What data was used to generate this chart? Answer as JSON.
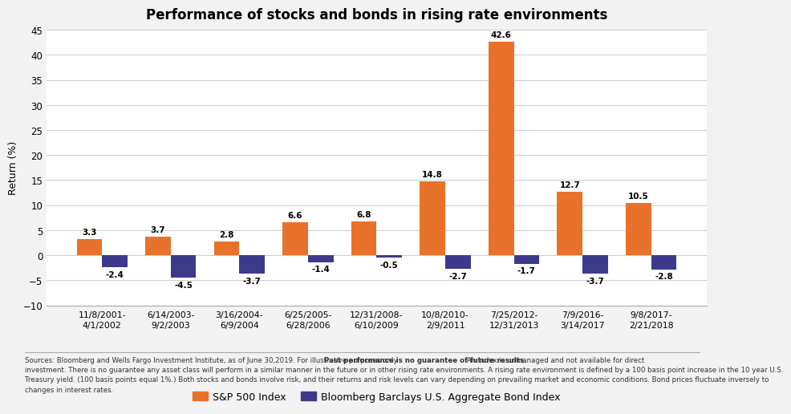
{
  "title": "Performance of stocks and bonds in rising rate environments",
  "categories": [
    "11/8/2001-\n4/1/2002",
    "6/14/2003-\n9/2/2003",
    "3/16/2004-\n6/9/2004",
    "6/25/2005-\n6/28/2006",
    "12/31/2008-\n6/10/2009",
    "10/8/2010-\n2/9/2011",
    "7/25/2012-\n12/31/2013",
    "7/9/2016-\n3/14/2017",
    "9/8/2017-\n2/21/2018"
  ],
  "sp500": [
    3.3,
    3.7,
    2.8,
    6.6,
    6.8,
    14.8,
    42.6,
    12.7,
    10.5
  ],
  "bonds": [
    -2.4,
    -4.5,
    -3.7,
    -1.4,
    -0.5,
    -2.7,
    -1.7,
    -3.7,
    -2.8
  ],
  "sp500_color": "#E8722A",
  "bonds_color": "#3D3A8C",
  "ylabel": "Return (%)",
  "ylim_min": -10,
  "ylim_max": 45,
  "yticks": [
    -10,
    -5,
    0,
    5,
    10,
    15,
    20,
    25,
    30,
    35,
    40,
    45
  ],
  "legend_sp500": "S&P 500 Index",
  "legend_bonds": "Bloomberg Barclays U.S. Aggregate Bond Index",
  "bg_color": "#F2F2F2",
  "plot_bg_color": "#FFFFFF",
  "footnote_line1_pre": "Sources: Bloomberg and Wells Fargo Investment Institute, as of June 30,2019. For illustrative purposes only. ",
  "footnote_line1_bold": "Past performance is no guarantee of future results.",
  "footnote_line1_post": " An index is unmanaged and not available for direct",
  "footnote_line2": "investment. There is no guarantee any asset class will perform in a similar manner in the future or in other rising rate environments. A rising rate environment is defined by a 100 basis point increase in the 10 year U.S.",
  "footnote_line3": "Treasury yield. (100 basis points equal 1%.) Both stocks and bonds involve risk, and their returns and risk levels can vary depending on prevailing market and economic conditions. Bond prices fluctuate inversely to",
  "footnote_line4": "changes in interest rates."
}
